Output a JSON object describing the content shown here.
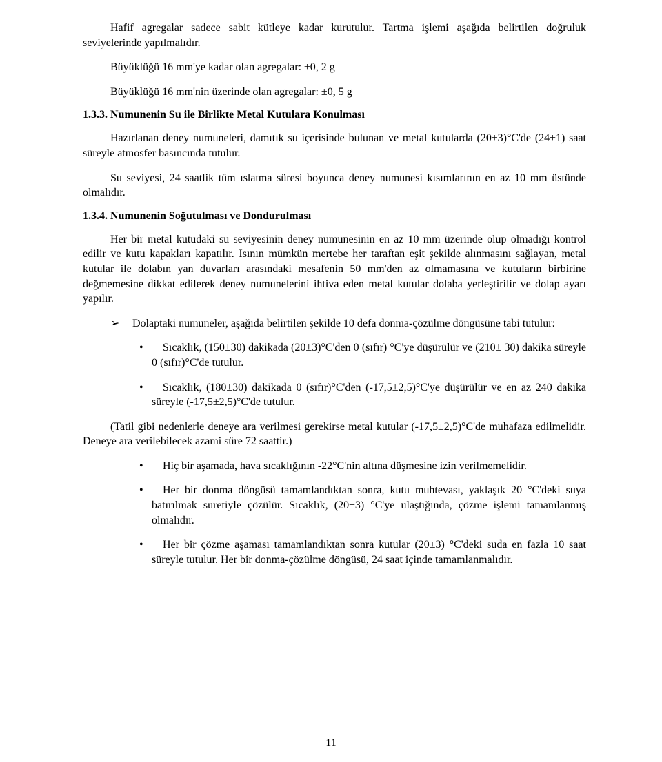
{
  "p1": "Hafif agregalar sadece sabit kütleye kadar kurutulur. Tartma işlemi aşağıda belirtilen doğruluk seviyelerinde yapılmalıdır.",
  "p2": "Büyüklüğü 16 mm'ye kadar olan agregalar: ±0, 2 g",
  "p3": "Büyüklüğü 16 mm'nin üzerinde olan agregalar: ±0, 5 g",
  "h133": "1.3.3. Numunenin Su ile Birlikte Metal Kutulara Konulması",
  "p4": "Hazırlanan deney numuneleri, damıtık su içerisinde bulunan ve metal kutularda (20±3)°C'de (24±1) saat süreyle atmosfer basıncında tutulur.",
  "p5": "Su seviyesi, 24 saatlik tüm ıslatma süresi boyunca deney numunesi kısımlarının en az 10 mm üstünde olmalıdır.",
  "h134": "1.3.4. Numunenin Soğutulması ve Dondurulması",
  "p6": "Her bir metal kutudaki su seviyesinin deney numunesinin en az 10 mm üzerinde olup olmadığı kontrol edilir ve kutu kapakları kapatılır. Isının mümkün mertebe her taraftan eşit şekilde alınmasını sağlayan, metal kutular ile dolabın yan duvarları arasındaki mesafenin 50 mm'den az olmamasına ve kutuların birbirine değmemesine dikkat edilerek deney numunelerini ihtiva eden metal kutular dolaba yerleştirilir ve dolap ayarı yapılır.",
  "arrow1": "Dolaptaki numuneler, aşağıda belirtilen şekilde 10 defa donma-çözülme döngüsüne tabi tutulur:",
  "b1": "Sıcaklık, (150±30) dakikada (20±3)°C'den 0 (sıfır) °C'ye düşürülür ve (210± 30) dakika süreyle 0 (sıfır)°C'de tutulur.",
  "b2": "Sıcaklık, (180±30) dakikada 0 (sıfır)°C'den (-17,5±2,5)°C'ye düşürülür ve en az 240 dakika süreyle (-17,5±2,5)°C'de tutulur.",
  "p7": "(Tatil gibi nedenlerle deneye ara verilmesi gerekirse metal kutular (-17,5±2,5)°C'de muhafaza edilmelidir. Deneye ara verilebilecek azami süre 72 saattir.)",
  "b3": "Hiç bir aşamada, hava sıcaklığının -22°C'nin altına düşmesine izin verilmemelidir.",
  "b4": "Her bir donma döngüsü tamamlandıktan sonra, kutu muhtevası, yaklaşık 20 °C'deki suya batırılmak suretiyle çözülür. Sıcaklık, (20±3) °C'ye ulaştığında, çözme işlemi tamamlanmış olmalıdır.",
  "b5": "Her bir çözme aşaması tamamlandıktan sonra kutular (20±3) °C'deki suda en fazla 10 saat süreyle tutulur. Her bir donma-çözülme döngüsü, 24 saat içinde tamamlanmalıdır.",
  "page_number": "11"
}
